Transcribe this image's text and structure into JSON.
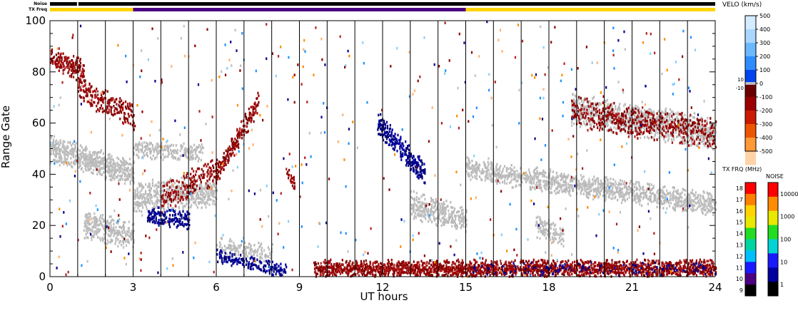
{
  "chart_data": {
    "type": "heatmap",
    "title": "",
    "xlabel": "UT hours",
    "ylabel": "Range Gate",
    "xlim": [
      0,
      24
    ],
    "ylim": [
      0,
      100
    ],
    "x_ticks": [
      0,
      3,
      6,
      9,
      12,
      15,
      18,
      21,
      24
    ],
    "y_ticks": [
      0,
      20,
      40,
      60,
      80,
      100
    ],
    "grid": "vertical lines at scan boundaries",
    "scan_boundaries_ut": [
      1,
      2,
      3,
      4,
      5,
      6,
      7,
      8,
      9,
      10,
      11,
      12,
      13,
      14,
      15,
      16,
      17,
      18,
      19,
      20,
      21,
      22,
      23
    ],
    "top_bars": {
      "noise_label": "Noise",
      "freq_label": "TX Freq",
      "noise_segments": [
        {
          "start": 0,
          "end": 24,
          "level": "1"
        }
      ],
      "freq_segments": [
        {
          "start": 0,
          "end": 3,
          "freq_mhz": 16
        },
        {
          "start": 3,
          "end": 15,
          "freq_mhz": 10
        },
        {
          "start": 15,
          "end": 24,
          "freq_mhz": 16
        }
      ]
    },
    "velocity_scale": {
      "title": "VELO (km/s)",
      "min": -500,
      "max": 500,
      "ticks": [
        500,
        400,
        300,
        200,
        100,
        0,
        -100,
        -200,
        -300,
        -400,
        -500
      ],
      "ground_scatter_label_top": "10",
      "ground_scatter_label_bottom": "-10",
      "ground_scatter_color": "#c0c0c0"
    },
    "freq_scale": {
      "title": "TX FRQ (MHz)",
      "ticks": [
        18,
        17,
        16,
        15,
        14,
        13,
        12,
        11,
        10,
        9
      ]
    },
    "noise_scale": {
      "title": "NOISE",
      "ticks": [
        "10000",
        "1000",
        "100",
        "10",
        "1"
      ]
    },
    "series": [
      {
        "kind": "ground_scatter",
        "color": "#c0c0c0",
        "bands": [
          {
            "t0": 0.0,
            "t1": 3.0,
            "g0": 50,
            "g1": 40,
            "width": 5,
            "density": 0.7
          },
          {
            "t0": 1.2,
            "t1": 3.0,
            "g0": 20,
            "g1": 16,
            "width": 5,
            "density": 0.5
          },
          {
            "t0": 3.0,
            "t1": 6.0,
            "g0": 30,
            "g1": 34,
            "width": 6,
            "density": 0.55
          },
          {
            "t0": 3.0,
            "t1": 5.5,
            "g0": 50,
            "g1": 48,
            "width": 3,
            "density": 0.45
          },
          {
            "t0": 6.0,
            "t1": 8.0,
            "g0": 12,
            "g1": 8,
            "width": 4,
            "density": 0.35
          },
          {
            "t0": 13.0,
            "t1": 15.0,
            "g0": 28,
            "g1": 22,
            "width": 5,
            "density": 0.5
          },
          {
            "t0": 15.0,
            "t1": 24.0,
            "g0": 42,
            "g1": 28,
            "width": 4,
            "density": 0.55
          },
          {
            "t0": 17.5,
            "t1": 18.5,
            "g0": 20,
            "g1": 16,
            "width": 4,
            "density": 0.45
          },
          {
            "t0": 18.8,
            "t1": 24.0,
            "g0": 65,
            "g1": 56,
            "width": 6,
            "density": 0.6
          }
        ]
      },
      {
        "kind": "negative_velocity",
        "color": "#8b0000",
        "bands": [
          {
            "t0": 0.0,
            "t1": 1.2,
            "g0": 86,
            "g1": 80,
            "width": 4,
            "density": 0.55
          },
          {
            "t0": 1.0,
            "t1": 3.0,
            "g0": 74,
            "g1": 62,
            "width": 5,
            "density": 0.35
          },
          {
            "t0": 4.0,
            "t1": 6.0,
            "g0": 30,
            "g1": 42,
            "width": 5,
            "density": 0.35
          },
          {
            "t0": 6.0,
            "t1": 7.5,
            "g0": 40,
            "g1": 68,
            "width": 4,
            "density": 0.55
          },
          {
            "t0": 8.5,
            "t1": 8.8,
            "g0": 42,
            "g1": 36,
            "width": 2,
            "density": 0.55
          },
          {
            "t0": 9.5,
            "t1": 24.0,
            "g0": 3,
            "g1": 3,
            "width": 3,
            "density": 0.75
          },
          {
            "t0": 18.8,
            "t1": 24.0,
            "g0": 64,
            "g1": 56,
            "width": 6,
            "density": 0.3
          }
        ]
      },
      {
        "kind": "positive_velocity",
        "color": "#00008b",
        "bands": [
          {
            "t0": 3.5,
            "t1": 5.0,
            "g0": 24,
            "g1": 22,
            "width": 3,
            "density": 0.5
          },
          {
            "t0": 6.0,
            "t1": 8.5,
            "g0": 8,
            "g1": 2,
            "width": 2,
            "density": 0.5
          },
          {
            "t0": 11.8,
            "t1": 13.5,
            "g0": 60,
            "g1": 40,
            "width": 4,
            "density": 0.6
          },
          {
            "t0": 15.0,
            "t1": 24.0,
            "g0": 3,
            "g1": 3,
            "width": 2,
            "density": 0.1
          }
        ]
      }
    ]
  }
}
